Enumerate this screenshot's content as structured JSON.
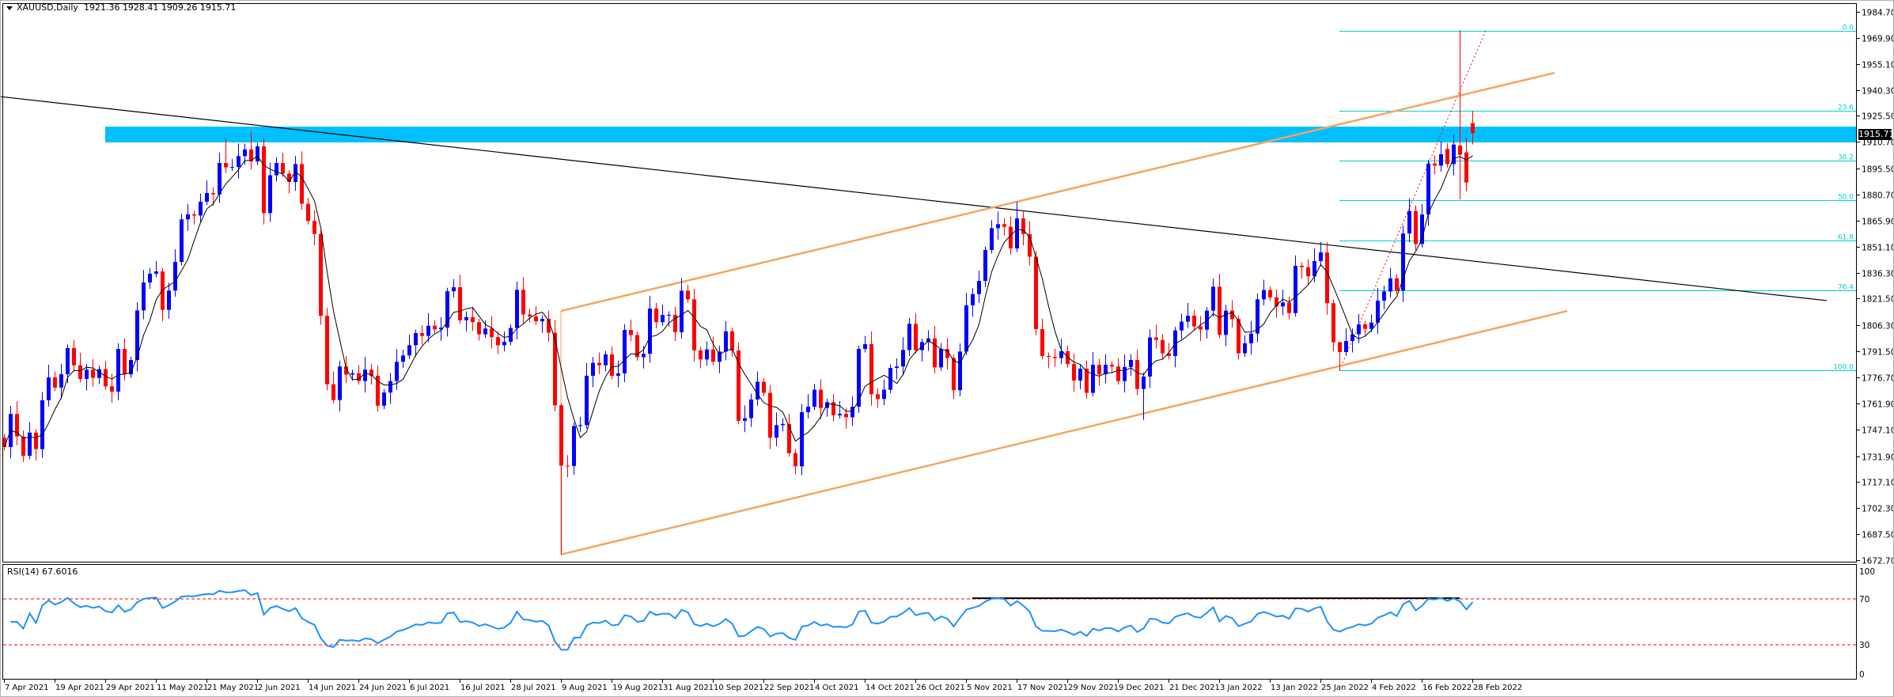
{
  "header": {
    "symbol": "XAUUSD,Daily",
    "ohlc_text": "1921.36 1928.41 1909.26 1915.71"
  },
  "current_price": "1915.71",
  "rsi_label": "RSI(14) 67.6016",
  "colors": {
    "bull": "#0000FF",
    "bear": "#FF0000",
    "ma": "#000000",
    "rsi": "#1E90FF",
    "zone": "#00BFFF",
    "fib": "#00CED1",
    "channel": "#F4A460",
    "trendline": "#000000",
    "levels": "#FF0000"
  },
  "chart_data": [
    {
      "type": "candlestick",
      "symbol": "XAUUSD",
      "timeframe": "Daily",
      "ylim": [
        1671.4,
        1991.5
      ],
      "price_ticks": [
        "1984.70",
        "1969.90",
        "1955.10",
        "1940.30",
        "1925.50",
        "1910.70",
        "1895.50",
        "1880.70",
        "1865.90",
        "1851.10",
        "1836.30",
        "1821.50",
        "1806.30",
        "1791.50",
        "1776.70",
        "1761.90",
        "1747.10",
        "1731.90",
        "1717.10",
        "1702.30",
        "1687.50",
        "1672.70"
      ],
      "date_labels": [
        "7 Apr 2021",
        "19 Apr 2021",
        "29 Apr 2021",
        "11 May 2021",
        "21 May 2021",
        "2 Jun 2021",
        "14 Jun 2021",
        "24 Jun 2021",
        "6 Jul 2021",
        "16 Jul 2021",
        "28 Jul 2021",
        "9 Aug 2021",
        "19 Aug 2021",
        "31 Aug 2021",
        "10 Sep 2021",
        "22 Sep 2021",
        "4 Oct 2021",
        "14 Oct 2021",
        "26 Oct 2021",
        "5 Nov 2021",
        "17 Nov 2021",
        "29 Nov 2021",
        "9 Dec 2021",
        "21 Dec 2021",
        "3 Jan 2022",
        "13 Jan 2022",
        "25 Jan 2022",
        "4 Feb 2022",
        "16 Feb 2022",
        "28 Feb 2022"
      ],
      "first_open": 1742.4,
      "close": [
        1737.1,
        1755.9,
        1743.1,
        1732.1,
        1745.3,
        1735.9,
        1763.7,
        1776.7,
        1770.9,
        1778.5,
        1793.4,
        1783.6,
        1775.8,
        1781.1,
        1776.4,
        1781.4,
        1771.6,
        1768.6,
        1792.9,
        1778.4,
        1786.6,
        1814.8,
        1830.7,
        1835.7,
        1837.0,
        1815.1,
        1826.1,
        1842.4,
        1866.6,
        1869.5,
        1868.8,
        1876.7,
        1881.6,
        1880.9,
        1898.7,
        1896.2,
        1896.4,
        1902.6,
        1906.4,
        1899.6,
        1908.2,
        1870.2,
        1891.7,
        1898.7,
        1892.7,
        1887.9,
        1898.1,
        1875.5,
        1865.7,
        1858.3,
        1811.7,
        1772.8,
        1763.8,
        1782.9,
        1778.3,
        1779.1,
        1774.6,
        1781.1,
        1777.6,
        1760.6,
        1768.1,
        1774.6,
        1785.6,
        1789.2,
        1795.0,
        1801.9,
        1800.3,
        1806.1,
        1804.0,
        1805.0,
        1825.7,
        1828.0,
        1809.2,
        1811.0,
        1808.1,
        1801.2,
        1804.5,
        1799.6,
        1795.0,
        1797.0,
        1804.8,
        1826.5,
        1812.5,
        1811.4,
        1808.6,
        1810.0,
        1802.1,
        1760.8,
        1726.5,
        1726.3,
        1749.0,
        1749.6,
        1777.6,
        1785.0,
        1783.6,
        1789.8,
        1777.6,
        1779.0,
        1803.7,
        1800.8,
        1788.2,
        1790.1,
        1815.9,
        1808.1,
        1812.2,
        1812.3,
        1802.4,
        1826.0,
        1821.1,
        1792.1,
        1786.9,
        1792.6,
        1785.6,
        1791.4,
        1802.9,
        1792.0,
        1752.0,
        1753.5,
        1764.1,
        1774.2,
        1767.9,
        1742.4,
        1749.5,
        1750.2,
        1733.6,
        1726.1,
        1756.9,
        1760.0,
        1769.7,
        1759.3,
        1762.6,
        1755.1,
        1756.0,
        1754.0,
        1760.0,
        1792.9,
        1795.6,
        1767.1,
        1764.4,
        1769.7,
        1782.1,
        1782.9,
        1792.3,
        1807.2,
        1792.2,
        1796.8,
        1798.9,
        1782.4,
        1792.9,
        1787.7,
        1769.4,
        1791.4,
        1817.7,
        1824.1,
        1831.6,
        1849.2,
        1861.6,
        1863.9,
        1862.4,
        1850.1,
        1867.2,
        1858.3,
        1845.4,
        1804.2,
        1788.9,
        1788.4,
        1787.7,
        1791.6,
        1784.3,
        1774.9,
        1781.7,
        1767.9,
        1783.9,
        1778.4,
        1783.9,
        1782.9,
        1774.6,
        1782.6,
        1786.6,
        1770.1,
        1777.2,
        1799.4,
        1798.0,
        1790.4,
        1788.9,
        1803.4,
        1808.4,
        1811.8,
        1805.7,
        1803.9,
        1814.7,
        1828.3,
        1800.9,
        1814.7,
        1809.9,
        1790.4,
        1796.1,
        1801.6,
        1821.1,
        1826.4,
        1822.2,
        1817.1,
        1819.3,
        1813.3,
        1840.2,
        1839.4,
        1834.2,
        1842.9,
        1847.8,
        1818.9,
        1796.7,
        1791.1,
        1797.4,
        1801.2,
        1806.9,
        1804.3,
        1807.9,
        1820.4,
        1825.6,
        1833.1,
        1826.1,
        1858.6,
        1871.4,
        1852.6,
        1869.4,
        1898.4,
        1897.2,
        1903.7,
        1898.1,
        1909.2,
        1903.4,
        1887.6,
        1915.71
      ],
      "open_overrides": {
        "228": 1906.7,
        "230": 1908.6,
        "231": 1904.7,
        "232": 1921.36
      },
      "high_low_overrides": {
        "35": [
          1912.7,
          1893.0
        ],
        "39": [
          1916.4,
          1895.0
        ],
        "88": [
          1762.0,
          1676.0
        ],
        "125": [
          1736.0,
          1721.5
        ],
        "160": [
          1876.6,
          1848.0
        ],
        "180": [
          1779.5,
          1752.5
        ],
        "208": [
          1853.7,
          1840.0
        ],
        "211": [
          1797.0,
          1780.6
        ],
        "230": [
          1974.4,
          1878.0
        ],
        "231": [
          1913.0,
          1882.7
        ],
        "232": [
          1928.41,
          1909.26
        ]
      },
      "moving_average": {
        "type": "SMA",
        "period": 5
      },
      "support_resistance_zone": {
        "from_bar": 16,
        "price_low": 1910.4,
        "price_high": 1919.4
      },
      "trendlines": [
        {
          "kind": "descending",
          "from": [
            -0.6,
            1936.5
          ],
          "to": [
            288,
            1820.4
          ]
        },
        {
          "kind": "channel-upper",
          "from": [
            88,
            1814.5
          ],
          "to": [
            245,
            1950.0
          ]
        },
        {
          "kind": "channel-lower",
          "from": [
            88,
            1675.9
          ],
          "to": [
            247,
            1814.5
          ]
        },
        {
          "kind": "channel-edge",
          "from": [
            88,
            1675.9
          ],
          "to": [
            88,
            1814.5
          ]
        }
      ],
      "fibonacci": {
        "from_bar": 211,
        "price_0": 1973.9,
        "price_100": 1780.8,
        "levels": [
          "0.0",
          "23.6",
          "38.2",
          "50.0",
          "61.8",
          "76.4",
          "100.0"
        ],
        "trend": {
          "from": [
            211,
            1780.8
          ],
          "to": [
            234.1,
            1973.9
          ]
        }
      }
    },
    {
      "type": "line",
      "indicator": "RSI",
      "period": 14,
      "last_value": 67.6016,
      "ylim": [
        0,
        100
      ],
      "ticks": [
        "100",
        "70",
        "30",
        "0"
      ],
      "levels": [
        70,
        30
      ],
      "horizontal_line": {
        "from_bar": 153,
        "to_bar": 230,
        "value": 70.6
      }
    }
  ]
}
